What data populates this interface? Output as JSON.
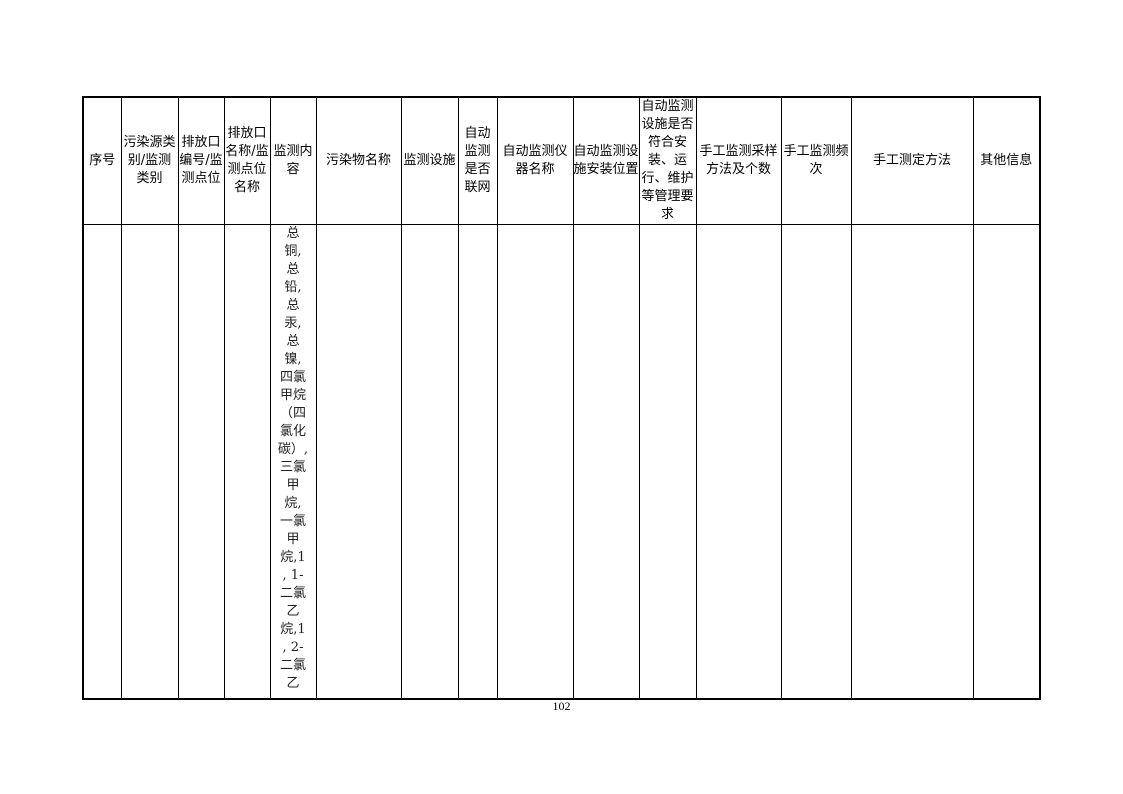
{
  "table": {
    "headers": [
      "序号",
      "污染源类别/监测类别",
      "排放口编号/监测点位",
      "排放口名称/监测点位名称",
      "监测内容",
      "污染物名称",
      "监测设施",
      "自动监测是否联网",
      "自动监测仪器名称",
      "自动监测设施安装位置",
      "自动监测设施是否符合安装、运行、维护等管理要求",
      "手工监测采样方法及个数",
      "手工监测频次",
      "手工测定方法",
      "其他信息"
    ],
    "monitoring_content_lines": [
      "总",
      "铜,",
      "总",
      "铅,",
      "总",
      "汞,",
      "总",
      "镍,",
      "四氯",
      "甲烷",
      "（四",
      "氯化",
      "碳）,",
      "三氯",
      "甲",
      "烷,",
      "一氯",
      "甲",
      "烷,1",
      ", 1-",
      "二氯",
      "乙",
      "烷,1",
      ", 2-",
      "二氯",
      "乙"
    ]
  },
  "page_number": "102"
}
